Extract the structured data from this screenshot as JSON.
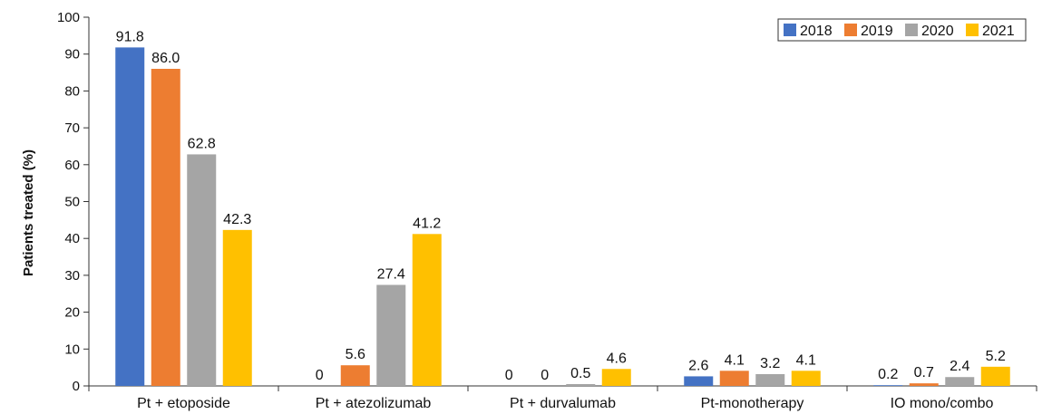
{
  "chart_data": {
    "type": "bar",
    "ylabel": "Patients treated (%)",
    "xlabel": "",
    "ylim": [
      0,
      100
    ],
    "yticks": [
      0,
      10,
      20,
      30,
      40,
      50,
      60,
      70,
      80,
      90,
      100
    ],
    "categories": [
      "Pt + etoposide",
      "Pt + atezolizumab",
      "Pt + durvalumab",
      "Pt-monotherapy",
      "IO mono/combo"
    ],
    "series": [
      {
        "name": "2018",
        "color": "#4472c4",
        "values": [
          91.8,
          0,
          0,
          2.6,
          0.2
        ],
        "labels": [
          "91.8",
          "0",
          "0",
          "2.6",
          "0.2"
        ]
      },
      {
        "name": "2019",
        "color": "#ed7d31",
        "values": [
          86.0,
          5.6,
          0,
          4.1,
          0.7
        ],
        "labels": [
          "86.0",
          "5.6",
          "0",
          "4.1",
          "0.7"
        ]
      },
      {
        "name": "2020",
        "color": "#a5a5a5",
        "values": [
          62.8,
          27.4,
          0.5,
          3.2,
          2.4
        ],
        "labels": [
          "62.8",
          "27.4",
          "0.5",
          "3.2",
          "2.4"
        ]
      },
      {
        "name": "2021",
        "color": "#ffc000",
        "values": [
          42.3,
          41.2,
          4.6,
          4.1,
          5.2
        ],
        "labels": [
          "42.3",
          "41.2",
          "4.6",
          "4.1",
          "5.2"
        ]
      }
    ],
    "legend_position": "top-right",
    "grid": false
  }
}
